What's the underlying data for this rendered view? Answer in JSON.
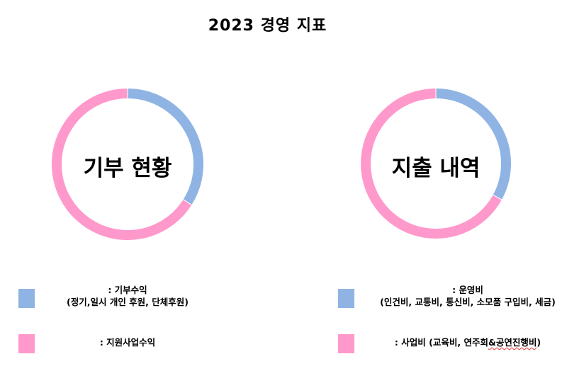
{
  "title": "2023 경영 지표",
  "colors": {
    "blue": "#8fb4e3",
    "pink": "#ff99cc"
  },
  "chart_data": [
    {
      "type": "pie",
      "title": "기부 현황",
      "categories": [
        ": 기부수익",
        ": 지원사업수익"
      ],
      "values": [
        34,
        66
      ],
      "colors": [
        "#8fb4e3",
        "#ff99cc"
      ],
      "donut": true
    },
    {
      "type": "pie",
      "title": "지출 내역",
      "categories": [
        ": 운영비",
        ": 사업비"
      ],
      "values": [
        33,
        67
      ],
      "colors": [
        "#8fb4e3",
        "#ff99cc"
      ],
      "donut": true
    }
  ],
  "legend": {
    "donation_income": {
      "line1": ": 기부수익",
      "line2": "(정기,일시 개인 후원, 단체후원)"
    },
    "support_income": {
      "line1": ": 지원사업수익"
    },
    "operating_cost": {
      "line1": ": 운영비",
      "line2": "(인건비, 교통비, 통신비, 소모품 구입비, 세금)"
    },
    "project_cost": {
      "prefix": ": 사업비 (교육비, 연주회",
      "squiggle": "&공연진행비",
      "suffix": ")"
    }
  }
}
